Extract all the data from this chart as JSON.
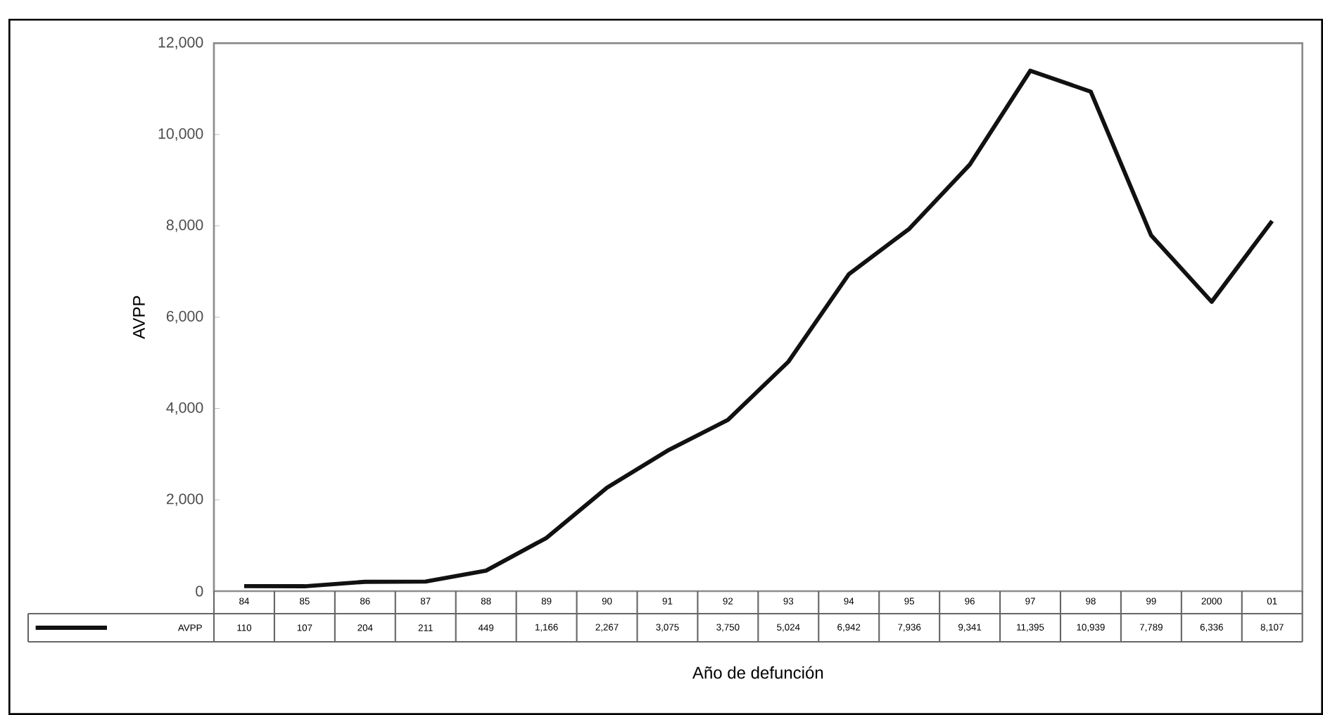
{
  "chart_data": {
    "type": "line",
    "xlabel": "Año de defunción",
    "ylabel": "AVPP",
    "categories": [
      "84",
      "85",
      "86",
      "87",
      "88",
      "89",
      "90",
      "91",
      "92",
      "93",
      "94",
      "95",
      "96",
      "97",
      "98",
      "99",
      "2000",
      "01"
    ],
    "series": [
      {
        "name": "AVPP",
        "color": "#111111",
        "values": [
          110,
          107,
          204,
          211,
          449,
          1166,
          2267,
          3075,
          3750,
          5024,
          6942,
          7936,
          9341,
          11395,
          10939,
          7789,
          6336,
          8107
        ]
      }
    ],
    "value_labels": [
      "110",
      "107",
      "204",
      "211",
      "449",
      "1,166",
      "2,267",
      "3,075",
      "3,750",
      "5,024",
      "6,942",
      "7,936",
      "9,341",
      "11,395",
      "10,939",
      "7,789",
      "6,336",
      "8,107"
    ],
    "ylim": [
      0,
      12000
    ],
    "yticks": [
      0,
      {
        "value": 2000,
        "label": "2,000"
      },
      {
        "value": 4000,
        "label": "4,000"
      },
      {
        "value": 6000,
        "label": "6,000"
      },
      {
        "value": 8000,
        "label": "8,000"
      },
      {
        "value": 10000,
        "label": "10,000"
      },
      {
        "value": 12000,
        "label": "12,000"
      }
    ],
    "legend": "bottom",
    "grid": false
  }
}
